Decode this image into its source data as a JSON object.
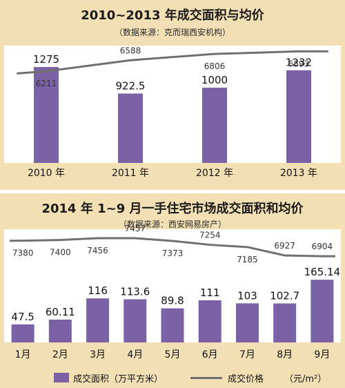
{
  "colors": {
    "bar": "#7b61a5",
    "line": "#6f6f6f",
    "panel_bg": "#f3dfb4"
  },
  "legend": {
    "bar_label": "成交面积（万平方米）",
    "line_label": "成交价格",
    "unit": "（元/m²）"
  },
  "chart_data": [
    {
      "type": "bar",
      "title": "2010~2013 年成交面积与均价",
      "subtitle": "（数据来源：克而瑞西安机构）",
      "categories": [
        "2010 年",
        "2011 年",
        "2012 年",
        "2013 年"
      ],
      "series": [
        {
          "name": "成交面积（万平方米）",
          "type": "bar",
          "values": [
            1275,
            922.5,
            1000,
            1232
          ],
          "labels": [
            "1275",
            "922.5",
            "1000",
            "1232"
          ]
        },
        {
          "name": "成交价格",
          "type": "line",
          "values": [
            6211,
            6588,
            6806,
            6893
          ],
          "labels": [
            "6211",
            "6588",
            "6806",
            "6893"
          ]
        }
      ]
    },
    {
      "type": "bar",
      "title": "2014 年 1~9 月一手住宅市场成交面积和均价",
      "subtitle": "（数据来源：西安网易房产）",
      "categories": [
        "1月",
        "2月",
        "3月",
        "4月",
        "5月",
        "6月",
        "7月",
        "8月",
        "9月"
      ],
      "series": [
        {
          "name": "成交面积（万平方米）",
          "type": "bar",
          "values": [
            47.5,
            60.11,
            116,
            113.6,
            89.8,
            111,
            103,
            102.7,
            165.14
          ],
          "labels": [
            "47.5",
            "60.11",
            "116",
            "113.6",
            "89.8",
            "111",
            "103",
            "102.7",
            "165.14"
          ]
        },
        {
          "name": "成交价格",
          "type": "line",
          "values": [
            7380,
            7400,
            7456,
            7457,
            7373,
            7254,
            7185,
            6927,
            6904
          ],
          "labels": [
            "7380",
            "7400",
            "7456",
            "7457",
            "7373",
            "7254",
            "7185",
            "6927",
            "6904"
          ]
        }
      ]
    }
  ]
}
